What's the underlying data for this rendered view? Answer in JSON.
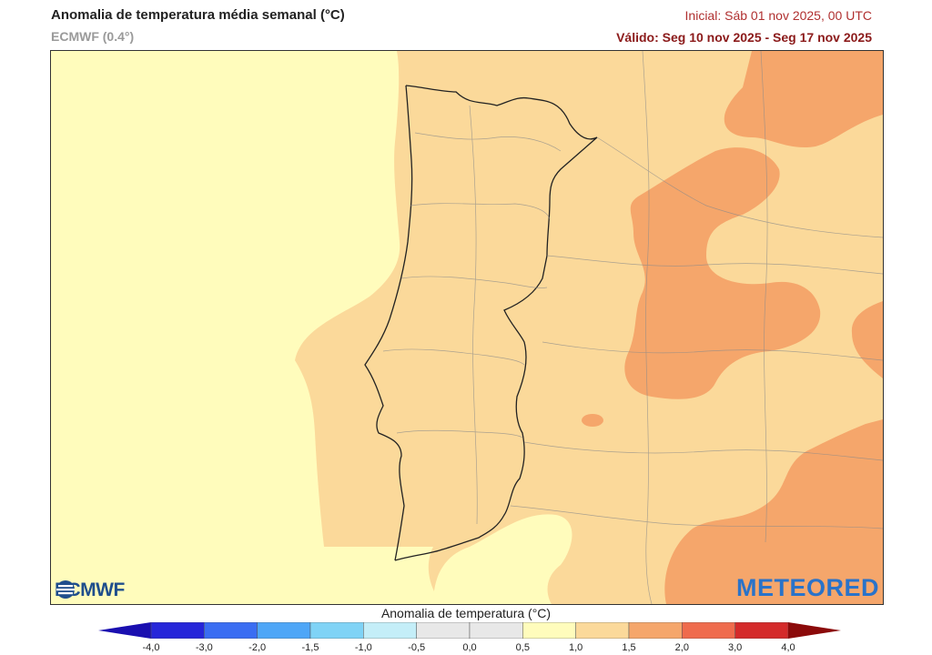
{
  "header": {
    "title": "Anomalia de temperatura média semanal (°C)",
    "model": "ECMWF (0.4°)",
    "initial": "Inicial: Sáb 01 nov 2025, 00 UTC",
    "valid": "Válido: Seg 10 nov 2025 - Seg 17 nov 2025"
  },
  "map": {
    "region": "Portugal",
    "logo_left": "ECMWF",
    "logo_left_icon": "ecmwf-logo-icon",
    "logo_right": "METEORED",
    "colors": {
      "ocean_0_1": "#fffcbc",
      "anom_1_1_5": "#fbd99a",
      "anom_1_5_2": "#f5a66b",
      "land_border": "#222222"
    }
  },
  "legend": {
    "title": "Anomalia de temperatura (°C)",
    "ticks": [
      "-4,0",
      "-3,0",
      "-2,0",
      "-1,5",
      "-1,0",
      "-0,5",
      "0,0",
      "0,5",
      "1,0",
      "1,5",
      "2,0",
      "3,0",
      "4,0"
    ],
    "colors": [
      "#2626d9",
      "#3a6df2",
      "#4ea6f7",
      "#7fd3f6",
      "#c4eef8",
      "#e8e8e8",
      "#e8e8e8",
      "#fffcbc",
      "#fbd99a",
      "#f5a66b",
      "#ef6b4d",
      "#d42a2a"
    ],
    "under_color": "#1a0fb0",
    "over_color": "#8b0a0a"
  }
}
